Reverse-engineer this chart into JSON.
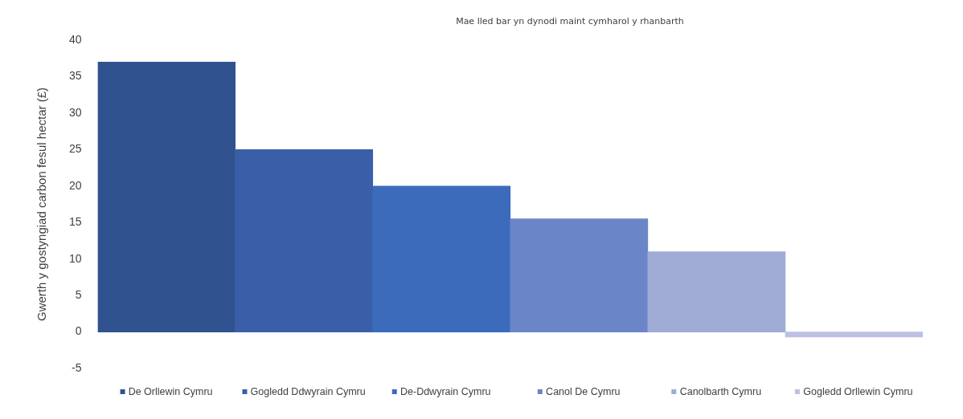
{
  "chart_data": {
    "type": "bar",
    "title": "Mae lled bar yn dynodi maint cymharol y rhanbarth",
    "ylabel": "Gwerth y gostyngiad carbon fesul hectar (£)",
    "categories": [
      "De Orllewin Cymru",
      "Gogledd Ddwyrain Cymru",
      "De-Ddwyrain Cymru",
      "Canol De Cymru",
      "Canolbarth Cymru",
      "Gogledd Orllewin Cymru"
    ],
    "values": [
      37,
      25,
      20,
      15.5,
      11,
      -0.7
    ],
    "colors": [
      "#30528f",
      "#3a5fa8",
      "#3d6bbc",
      "#6b86c8",
      "#a0acd6",
      "#bcc0e2"
    ],
    "ylim": [
      -5,
      40
    ],
    "yticks": [
      -5,
      0,
      5,
      10,
      15,
      20,
      25,
      30,
      35,
      40
    ]
  }
}
